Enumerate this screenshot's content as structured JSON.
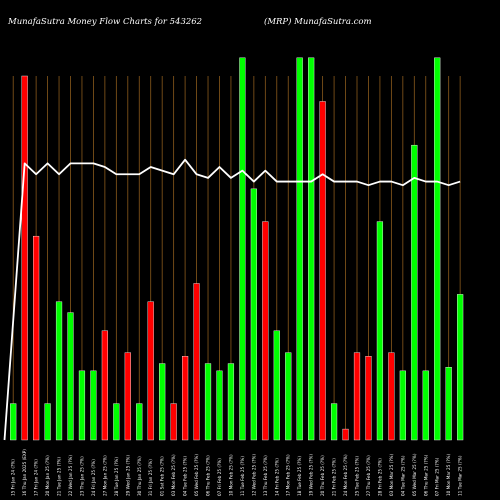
{
  "header": {
    "left": "MunafaSutra  Money Flow  Charts for 543262",
    "right": "(MRP) MunafaSutra.com"
  },
  "chart_data": {
    "type": "bar",
    "colors": {
      "up": "#00ff00",
      "down": "#ff0000",
      "line": "#ffffff",
      "grid": "#8a5a1c",
      "background": "#000000"
    },
    "categories": [
      "15 Fri Jan 24 (?%)",
      "16 Thu Jan 2025 (EXP)",
      "17 Fri Jan 24 (?%)",
      "20 Mon Jan 25 (?%)",
      "21 Tue Jan 25 (?%)",
      "22 Wed Jan 25 (?%)",
      "23 Thu Jan 25 (?%)",
      "24 Fri Jan 25 (?%)",
      "27 Mon Jan 25 (?%)",
      "28 Tue Jan 25 (?%)",
      "29 Wed Jan 25 (?%)",
      "30 Thu Jan 25 (?%)",
      "31 Fri Jan 25 (?%)",
      "01 Sat Feb 25 (?%)",
      "03 Mon Feb 25 (?%)",
      "04 Tue Feb 25 (?%)",
      "05 Wed Feb 25 (?%)",
      "06 Thu Feb 25 (?%)",
      "07 Fri Feb 25 (?%)",
      "10 Mon Feb 25 (?%)",
      "11 Tue Feb 25 (?%)",
      "12 Wed Feb 25 (?%)",
      "13 Thu Feb 25 (?%)",
      "14 Fri Feb 25 (?%)",
      "17 Mon Feb 25 (?%)",
      "18 Tue Feb 25 (?%)",
      "19 Wed Feb 25 (?%)",
      "20 Thu Feb 25 (?%)",
      "21 Fri Feb 25 (?%)",
      "24 Mon Feb 25 (?%)",
      "25 Tue Feb 25 (?%)",
      "27 Thu Feb 25 (?%)",
      "28 Fri Feb 25 (?%)",
      "03 Mon Mar 25 (?%)",
      "04 Tue Mar 25 (?%)",
      "05 Wed Mar 25 (?%)",
      "06 Thu Mar 25 (?%)",
      "07 Fri Mar 25 (?%)",
      "10 Mon Mar 25 (?%)",
      "11 Tue Mar 25 (?%)"
    ],
    "series": [
      {
        "values": [
          10,
          100,
          56,
          10,
          38,
          35,
          19,
          19,
          30,
          10,
          24,
          10,
          38,
          21,
          10,
          23,
          43,
          21,
          19,
          21,
          105,
          69,
          60,
          30,
          24,
          105,
          105,
          93,
          10,
          3,
          24,
          23,
          60,
          24,
          19,
          81,
          19,
          105,
          20,
          40
        ],
        "direction": [
          "up",
          "down",
          "down",
          "up",
          "up",
          "up",
          "up",
          "up",
          "down",
          "up",
          "down",
          "up",
          "down",
          "up",
          "down",
          "down",
          "down",
          "up",
          "up",
          "up",
          "up",
          "up",
          "down",
          "up",
          "up",
          "up",
          "up",
          "down",
          "up",
          "down",
          "down",
          "down",
          "up",
          "down",
          "up",
          "up",
          "up",
          "up",
          "up",
          "up"
        ]
      },
      {
        "values": [
          0,
          76,
          73,
          76,
          73,
          76,
          76,
          76,
          75,
          73,
          73,
          73,
          75,
          74,
          73,
          77,
          73,
          72,
          75,
          72,
          74,
          71,
          74,
          71,
          71,
          71,
          71,
          73,
          71,
          71,
          71,
          70,
          71,
          71,
          70,
          72,
          71,
          71,
          70,
          71
        ]
      }
    ],
    "ylim": [
      0,
      100
    ],
    "grid": true
  }
}
